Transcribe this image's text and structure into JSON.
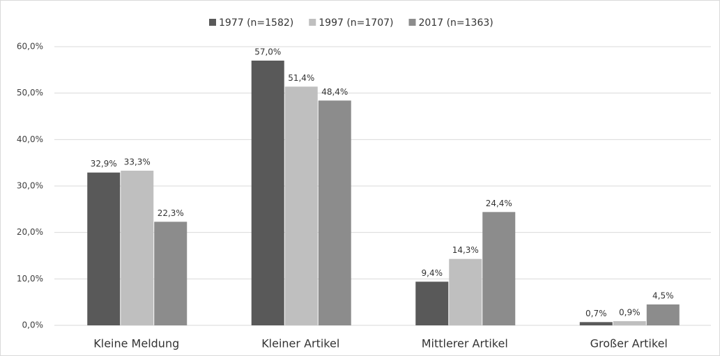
{
  "chart_data": {
    "type": "bar",
    "categories": [
      "Kleine Meldung",
      "Kleiner Artikel",
      "Mittlerer Artikel",
      "Großer Artikel"
    ],
    "series": [
      {
        "name": "1977 (n=1582)",
        "color": "#595959",
        "values": [
          32.9,
          57.0,
          9.4,
          0.7
        ],
        "value_labels": [
          "32,9%",
          "57,0%",
          "9,4%",
          "0,7%"
        ]
      },
      {
        "name": "1997 (n=1707)",
        "color": "#bfbfbf",
        "values": [
          33.3,
          51.4,
          14.3,
          0.9
        ],
        "value_labels": [
          "33,3%",
          "51,4%",
          "14,3%",
          "0,9%"
        ]
      },
      {
        "name": "2017 (n=1363)",
        "color": "#8c8c8c",
        "values": [
          22.3,
          48.4,
          24.4,
          4.5
        ],
        "value_labels": [
          "22,3%",
          "48,4%",
          "24,4%",
          "4,5%"
        ]
      }
    ],
    "ylim": [
      0,
      60
    ],
    "yticks": [
      {
        "value": 0,
        "label": "0,0%"
      },
      {
        "value": 10,
        "label": "10,0%"
      },
      {
        "value": 20,
        "label": "20,0%"
      },
      {
        "value": 30,
        "label": "30,0%"
      },
      {
        "value": 40,
        "label": "40,0%"
      },
      {
        "value": 50,
        "label": "50,0%"
      },
      {
        "value": 60,
        "label": "60,0%"
      }
    ],
    "grid": true,
    "legend": "top"
  }
}
